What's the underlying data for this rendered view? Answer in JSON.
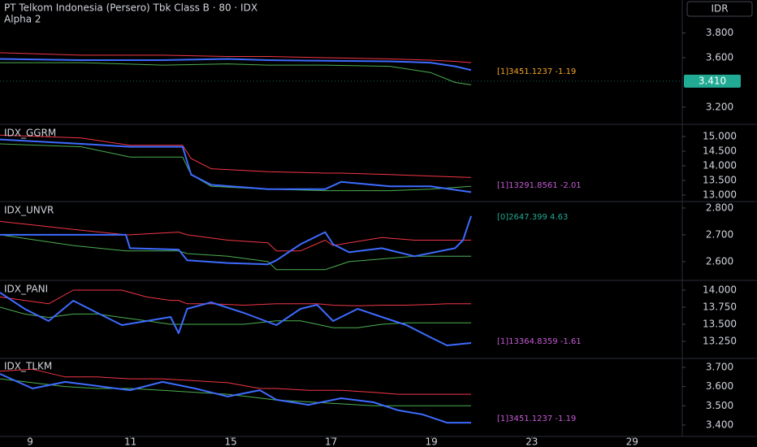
{
  "currency": "IDR",
  "x_axis": {
    "xlim": [
      -0.6,
      13.0
    ],
    "xticks": [
      {
        "value": 0,
        "label": "9"
      },
      {
        "value": 2,
        "label": "11"
      },
      {
        "value": 4,
        "label": "15"
      },
      {
        "value": 6,
        "label": "17"
      },
      {
        "value": 8,
        "label": "19"
      },
      {
        "value": 10,
        "label": "23"
      },
      {
        "value": 12,
        "label": "29"
      }
    ]
  },
  "chart_data": [
    {
      "type": "line",
      "title": "PT Telkom Indonesia (Persero) Tbk Class B · 80 · IDX",
      "subtitle": "Alpha 2",
      "x": [
        -0.6,
        1.02,
        2.64,
        3.94,
        4.74,
        5.88,
        7.17,
        7.98,
        8.47,
        8.79
      ],
      "series": [
        {
          "color": "#f23645",
          "values": [
            3640,
            3620,
            3620,
            3610,
            3610,
            3600,
            3590,
            3580,
            3570,
            3560
          ]
        },
        {
          "color": "#4caf50",
          "values": [
            3560,
            3560,
            3540,
            3550,
            3540,
            3540,
            3530,
            3480,
            3400,
            3380
          ]
        },
        {
          "color": "#3d6bff",
          "values": [
            3590,
            3580,
            3580,
            3590,
            3580,
            3575,
            3570,
            3560,
            3530,
            3500
          ]
        }
      ],
      "ylim": [
        3067,
        4067
      ],
      "yticks": [
        {
          "value": 3200,
          "label": "3.200"
        },
        {
          "value": 3600,
          "label": "3.600"
        },
        {
          "value": 3800,
          "label": "3.800"
        }
      ],
      "last_price": {
        "value": 3410,
        "label": "3.410",
        "color": "#22ab94"
      },
      "annotation": {
        "text": "[1]3451.1237 -1.19",
        "color": "#f5a623"
      }
    },
    {
      "type": "line",
      "title": "IDX_GGRM",
      "x": [
        -0.6,
        1.02,
        1.99,
        3.04,
        3.21,
        3.61,
        4.74,
        5.88,
        6.2,
        7.17,
        7.98,
        8.79
      ],
      "series": [
        {
          "color": "#f23645",
          "values": [
            15050,
            14950,
            14700,
            14700,
            14250,
            13900,
            13800,
            13750,
            13750,
            13700,
            13650,
            13600
          ]
        },
        {
          "color": "#4caf50",
          "values": [
            14750,
            14650,
            14300,
            14300,
            13700,
            13300,
            13200,
            13150,
            13150,
            13150,
            13200,
            13300
          ]
        },
        {
          "color": "#3d6bff",
          "values": [
            14900,
            14750,
            14650,
            14650,
            13700,
            13350,
            13200,
            13200,
            13450,
            13300,
            13300,
            13100
          ]
        }
      ],
      "ylim": [
        12778,
        15361
      ],
      "yticks": [
        {
          "value": 13000,
          "label": "13.000"
        },
        {
          "value": 13500,
          "label": "13.500"
        },
        {
          "value": 14000,
          "label": "14.000"
        },
        {
          "value": 14500,
          "label": "14.500"
        },
        {
          "value": 15000,
          "label": "15.000"
        }
      ],
      "annotation": {
        "text": "[1]13291.8561 -2.01",
        "color": "#c65bd6"
      }
    },
    {
      "type": "line",
      "title": "IDX_UNVR",
      "x": [
        -0.6,
        0.86,
        1.91,
        1.99,
        2.96,
        3.13,
        3.94,
        4.74,
        4.91,
        5.39,
        5.88,
        6.04,
        6.36,
        7.01,
        7.66,
        8.47,
        8.63,
        8.79
      ],
      "series": [
        {
          "color": "#f23645",
          "values": [
            2750,
            2720,
            2700,
            2700,
            2710,
            2700,
            2680,
            2670,
            2640,
            2640,
            2680,
            2660,
            2670,
            2690,
            2680,
            2680,
            2680,
            2680
          ]
        },
        {
          "color": "#4caf50",
          "values": [
            2700,
            2660,
            2640,
            2640,
            2640,
            2630,
            2620,
            2600,
            2570,
            2570,
            2570,
            2580,
            2600,
            2610,
            2620,
            2620,
            2620,
            2620
          ]
        },
        {
          "color": "#3d6bff",
          "values": [
            2700,
            2700,
            2700,
            2650,
            2645,
            2605,
            2595,
            2590,
            2605,
            2665,
            2710,
            2665,
            2635,
            2650,
            2620,
            2650,
            2680,
            2770
          ]
        }
      ],
      "ylim": [
        2530,
        2818
      ],
      "yticks": [
        {
          "value": 2600,
          "label": "2.600"
        },
        {
          "value": 2700,
          "label": "2.700"
        },
        {
          "value": 2800,
          "label": "2.800"
        }
      ],
      "annotation": {
        "text": "[0]2647.399 4.63",
        "color": "#22ab94"
      }
    },
    {
      "type": "line",
      "title": "IDX_PANI",
      "x": [
        -0.6,
        -0.11,
        0.37,
        0.86,
        1.34,
        1.83,
        2.32,
        2.8,
        2.96,
        3.13,
        3.61,
        4.26,
        4.91,
        5.39,
        5.72,
        6.04,
        6.53,
        7.01,
        7.5,
        7.98,
        8.31,
        8.79
      ],
      "series": [
        {
          "color": "#f23645",
          "values": [
            13900,
            13850,
            13800,
            14000,
            14000,
            14000,
            13900,
            13850,
            13850,
            13800,
            13800,
            13780,
            13800,
            13800,
            13800,
            13780,
            13770,
            13780,
            13780,
            13790,
            13800,
            13800
          ]
        },
        {
          "color": "#4caf50",
          "values": [
            13750,
            13650,
            13600,
            13650,
            13650,
            13600,
            13550,
            13500,
            13500,
            13500,
            13500,
            13500,
            13550,
            13550,
            13500,
            13450,
            13450,
            13500,
            13520,
            13520,
            13520,
            13520
          ]
        },
        {
          "color": "#3d6bff",
          "values": [
            13964,
            13726,
            13548,
            13845,
            13667,
            13488,
            13548,
            13607,
            13369,
            13726,
            13821,
            13667,
            13488,
            13726,
            13786,
            13548,
            13726,
            13607,
            13488,
            13309,
            13190,
            13226
          ]
        }
      ],
      "ylim": [
        13012,
        14119
      ],
      "yticks": [
        {
          "value": 13250,
          "label": "13.250"
        },
        {
          "value": 13500,
          "label": "13.500"
        },
        {
          "value": 13750,
          "label": "13.750"
        },
        {
          "value": 14000,
          "label": "14.000"
        }
      ],
      "annotation": {
        "text": "[1]13364.8359 -1.61",
        "color": "#c65bd6"
      }
    },
    {
      "type": "line",
      "title": "IDX_TLKM",
      "x": [
        -0.6,
        0.05,
        0.7,
        1.34,
        1.99,
        2.64,
        3.29,
        3.94,
        4.58,
        4.91,
        5.55,
        6.2,
        6.85,
        7.34,
        7.82,
        8.31,
        8.79
      ],
      "series": [
        {
          "color": "#f23645",
          "values": [
            3680,
            3690,
            3650,
            3650,
            3640,
            3640,
            3630,
            3620,
            3590,
            3590,
            3580,
            3580,
            3570,
            3560,
            3560,
            3560,
            3560
          ]
        },
        {
          "color": "#4caf50",
          "values": [
            3640,
            3620,
            3600,
            3590,
            3590,
            3580,
            3570,
            3560,
            3540,
            3530,
            3520,
            3510,
            3500,
            3500,
            3500,
            3500,
            3500
          ]
        },
        {
          "color": "#3d6bff",
          "values": [
            3666,
            3590,
            3624,
            3603,
            3581,
            3624,
            3590,
            3548,
            3581,
            3531,
            3505,
            3539,
            3518,
            3476,
            3455,
            3412,
            3412
          ]
        }
      ],
      "ylim": [
        3349,
        3742
      ],
      "yticks": [
        {
          "value": 3400,
          "label": "3.400"
        },
        {
          "value": 3500,
          "label": "3.500"
        },
        {
          "value": 3600,
          "label": "3.600"
        },
        {
          "value": 3700,
          "label": "3.700"
        }
      ],
      "annotation": {
        "text": "[1]3451.1237 -1.19",
        "color": "#c65bd6"
      }
    }
  ]
}
